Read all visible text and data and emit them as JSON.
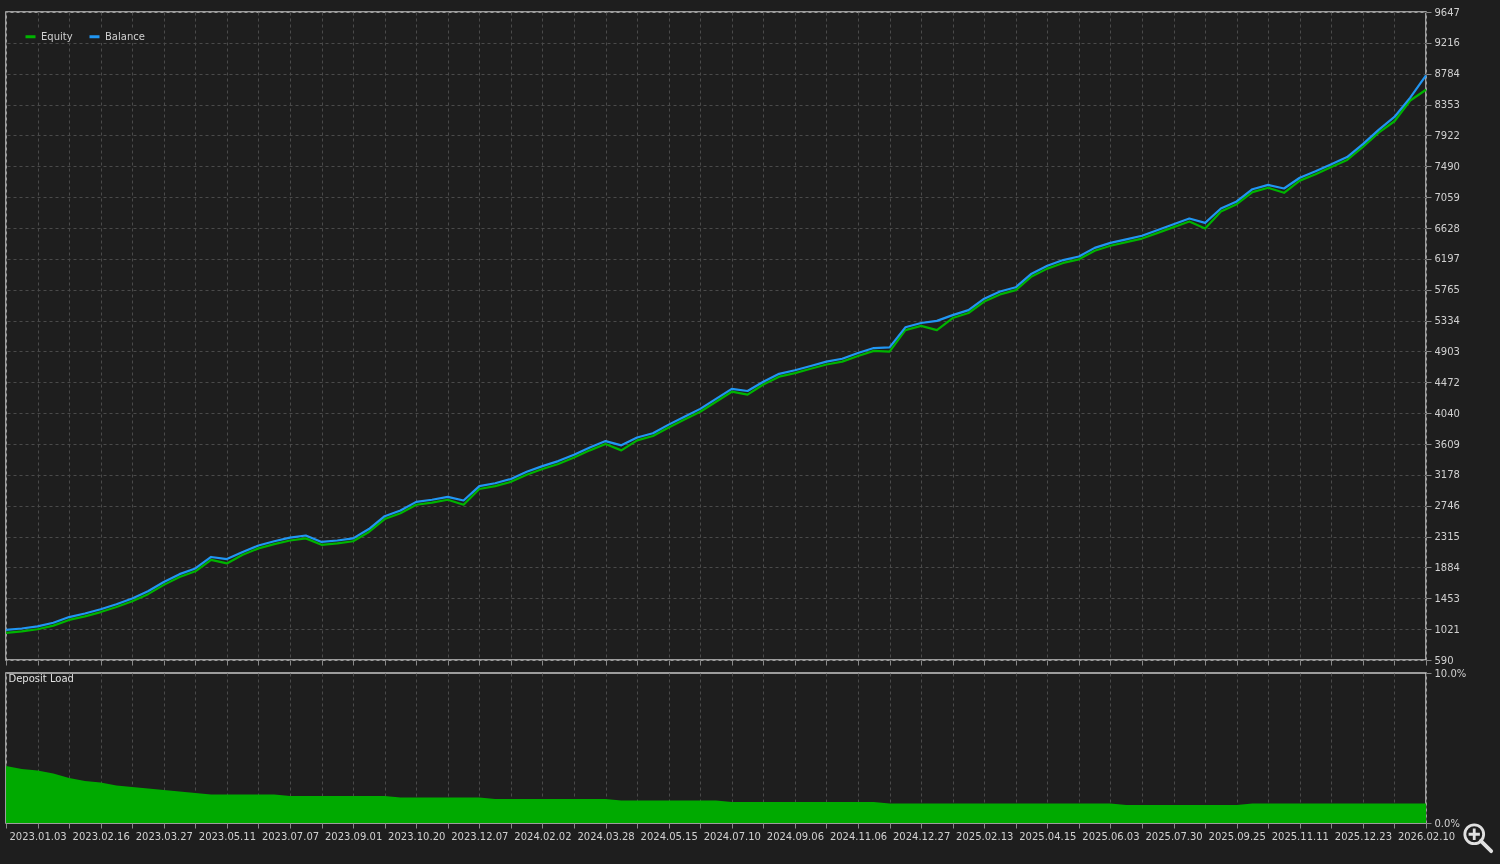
{
  "chart_data": [
    {
      "type": "line",
      "legend": "top left",
      "grid": true,
      "tick_labels": "y",
      "categories": [
        null,
        null,
        "2023.01.03",
        null,
        null,
        null,
        "2023.02.16",
        null,
        null,
        null,
        "2023.03.27",
        null,
        null,
        null,
        "2023.05.11",
        null,
        null,
        null,
        "2023.07.07",
        null,
        null,
        null,
        "2023.09.01",
        null,
        null,
        null,
        "2023.10.20",
        null,
        null,
        null,
        "2023.12.07",
        null,
        null,
        null,
        "2024.02.02",
        null,
        null,
        null,
        "2024.03.28",
        null,
        null,
        null,
        "2024.05.15",
        null,
        null,
        null,
        "2024.07.10",
        null,
        null,
        null,
        "2024.09.06",
        null,
        null,
        null,
        "2024.11.06",
        null,
        null,
        null,
        "2024.12.27",
        null,
        null,
        null,
        "2025.02.13",
        null,
        null,
        null,
        "2025.04.15",
        null,
        null,
        null,
        "2025.06.03",
        null,
        null,
        null,
        "2025.07.30",
        null,
        null,
        null,
        "2025.09.25",
        null,
        null,
        null,
        "2025.11.11",
        null,
        null,
        null,
        "2025.12.23",
        null,
        null,
        null,
        "2026.02.10"
      ],
      "ylim": [
        590,
        9647
      ],
      "yticks": [
        590,
        1021,
        1453,
        1884,
        2315,
        2746,
        3178,
        3609,
        4040,
        4472,
        4903,
        5334,
        5765,
        6197,
        6628,
        7059,
        7490,
        7922,
        8353,
        8784,
        9216,
        9647
      ],
      "series": [
        {
          "name": "Equity",
          "color": "#00b400",
          "values": [
            970,
            990,
            1020,
            1070,
            1150,
            1200,
            1260,
            1330,
            1410,
            1510,
            1640,
            1750,
            1830,
            1990,
            1940,
            2060,
            2150,
            2210,
            2260,
            2290,
            2200,
            2220,
            2250,
            2380,
            2560,
            2640,
            2760,
            2790,
            2830,
            2760,
            2980,
            3020,
            3080,
            3180,
            3260,
            3330,
            3420,
            3520,
            3610,
            3520,
            3660,
            3720,
            3840,
            3950,
            4060,
            4200,
            4340,
            4300,
            4440,
            4550,
            4600,
            4660,
            4720,
            4760,
            4840,
            4910,
            4900,
            5200,
            5260,
            5200,
            5370,
            5440,
            5600,
            5700,
            5760,
            5950,
            6060,
            6140,
            6190,
            6310,
            6380,
            6430,
            6480,
            6560,
            6640,
            6720,
            6620,
            6860,
            6960,
            7130,
            7190,
            7120,
            7290,
            7380,
            7480,
            7580,
            7760,
            7960,
            8120,
            8410,
            8560
          ]
        },
        {
          "name": "Balance",
          "color": "#2196f3",
          "values": [
            1010,
            1030,
            1060,
            1110,
            1190,
            1240,
            1300,
            1370,
            1450,
            1550,
            1680,
            1790,
            1870,
            2030,
            2000,
            2100,
            2190,
            2250,
            2300,
            2330,
            2240,
            2260,
            2290,
            2420,
            2600,
            2680,
            2800,
            2830,
            2870,
            2820,
            3020,
            3060,
            3120,
            3220,
            3300,
            3370,
            3460,
            3560,
            3650,
            3590,
            3700,
            3760,
            3880,
            3990,
            4100,
            4240,
            4380,
            4350,
            4480,
            4590,
            4640,
            4700,
            4760,
            4800,
            4880,
            4950,
            4960,
            5240,
            5300,
            5330,
            5410,
            5480,
            5640,
            5740,
            5800,
            5990,
            6100,
            6180,
            6230,
            6350,
            6420,
            6470,
            6520,
            6600,
            6680,
            6760,
            6700,
            6900,
            7000,
            7170,
            7230,
            7180,
            7330,
            7420,
            7520,
            7620,
            7800,
            8000,
            8180,
            8450,
            8760
          ]
        }
      ]
    },
    {
      "type": "area",
      "title": "Deposit Load",
      "grid": "x",
      "categories": [
        null,
        null,
        "2023.01.03",
        null,
        null,
        null,
        "2023.02.16",
        null,
        null,
        null,
        "2023.03.27",
        null,
        null,
        null,
        "2023.05.11",
        null,
        null,
        null,
        "2023.07.07",
        null,
        null,
        null,
        "2023.09.01",
        null,
        null,
        null,
        "2023.10.20",
        null,
        null,
        null,
        "2023.12.07",
        null,
        null,
        null,
        "2024.02.02",
        null,
        null,
        null,
        "2024.03.28",
        null,
        null,
        null,
        "2024.05.15",
        null,
        null,
        null,
        "2024.07.10",
        null,
        null,
        null,
        "2024.09.06",
        null,
        null,
        null,
        "2024.11.06",
        null,
        null,
        null,
        "2024.12.27",
        null,
        null,
        null,
        "2025.02.13",
        null,
        null,
        null,
        "2025.04.15",
        null,
        null,
        null,
        "2025.06.03",
        null,
        null,
        null,
        "2025.07.30",
        null,
        null,
        null,
        "2025.09.25",
        null,
        null,
        null,
        "2025.11.11",
        null,
        null,
        null,
        "2025.12.23",
        null,
        null,
        null,
        "2026.02.10"
      ],
      "ylim": [
        0,
        10
      ],
      "yticks": [
        {
          "value": 0,
          "label": "0.0%"
        },
        {
          "value": 10,
          "label": "10.0%"
        }
      ],
      "series": [
        {
          "color": "#00aa00",
          "values": [
            3.8,
            3.6,
            3.5,
            3.3,
            3.0,
            2.8,
            2.7,
            2.5,
            2.4,
            2.3,
            2.2,
            2.1,
            2.0,
            1.9,
            1.9,
            1.9,
            1.9,
            1.9,
            1.8,
            1.8,
            1.8,
            1.8,
            1.8,
            1.8,
            1.8,
            1.7,
            1.7,
            1.7,
            1.7,
            1.7,
            1.7,
            1.6,
            1.6,
            1.6,
            1.6,
            1.6,
            1.6,
            1.6,
            1.6,
            1.5,
            1.5,
            1.5,
            1.5,
            1.5,
            1.5,
            1.5,
            1.4,
            1.4,
            1.4,
            1.4,
            1.4,
            1.4,
            1.4,
            1.4,
            1.4,
            1.4,
            1.3,
            1.3,
            1.3,
            1.3,
            1.3,
            1.3,
            1.3,
            1.3,
            1.3,
            1.3,
            1.3,
            1.3,
            1.3,
            1.3,
            1.3,
            1.2,
            1.2,
            1.2,
            1.2,
            1.2,
            1.2,
            1.2,
            1.2,
            1.3,
            1.3,
            1.3,
            1.3,
            1.3,
            1.3,
            1.3,
            1.3,
            1.3,
            1.3,
            1.3,
            1.3
          ]
        }
      ]
    }
  ]
}
